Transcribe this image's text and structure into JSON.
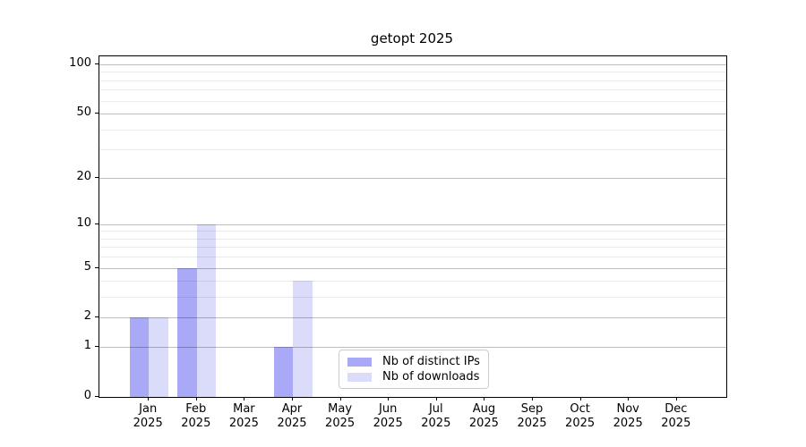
{
  "title": "getopt 2025",
  "chart_data": {
    "type": "bar",
    "title": "getopt 2025",
    "xlabel": "",
    "ylabel": "",
    "categories": [
      "Jan",
      "Feb",
      "Mar",
      "Apr",
      "May",
      "Jun",
      "Jul",
      "Aug",
      "Sep",
      "Oct",
      "Nov",
      "Dec"
    ],
    "category_year": "2025",
    "series": [
      {
        "name": "Nb of distinct IPs",
        "color": "#a9a9f7",
        "values": [
          2,
          5,
          0,
          1,
          0,
          0,
          0,
          0,
          0,
          0,
          0,
          0
        ]
      },
      {
        "name": "Nb of downloads",
        "color": "#dbdbfa",
        "values": [
          2,
          10,
          0,
          4,
          0,
          0,
          0,
          0,
          0,
          0,
          0,
          0
        ]
      }
    ],
    "y_axis": {
      "scale": "log10(1+x)",
      "major_ticks": [
        0,
        1,
        2,
        5,
        10,
        20,
        50,
        100
      ],
      "minor_ticks": [
        3,
        4,
        6,
        7,
        8,
        9,
        30,
        40,
        60,
        70,
        80,
        90
      ],
      "ymin": 0,
      "ymax": 113
    },
    "grid": "horizontal, major and minor, drawn above bars",
    "legend_position": "lower center"
  },
  "colors": {
    "background": "#ffffff",
    "spine": "#000000",
    "major_grid": "rgba(0,0,0,0.26)",
    "minor_grid": "rgba(0,0,0,0.08)",
    "legend_border": "#cccccc"
  }
}
